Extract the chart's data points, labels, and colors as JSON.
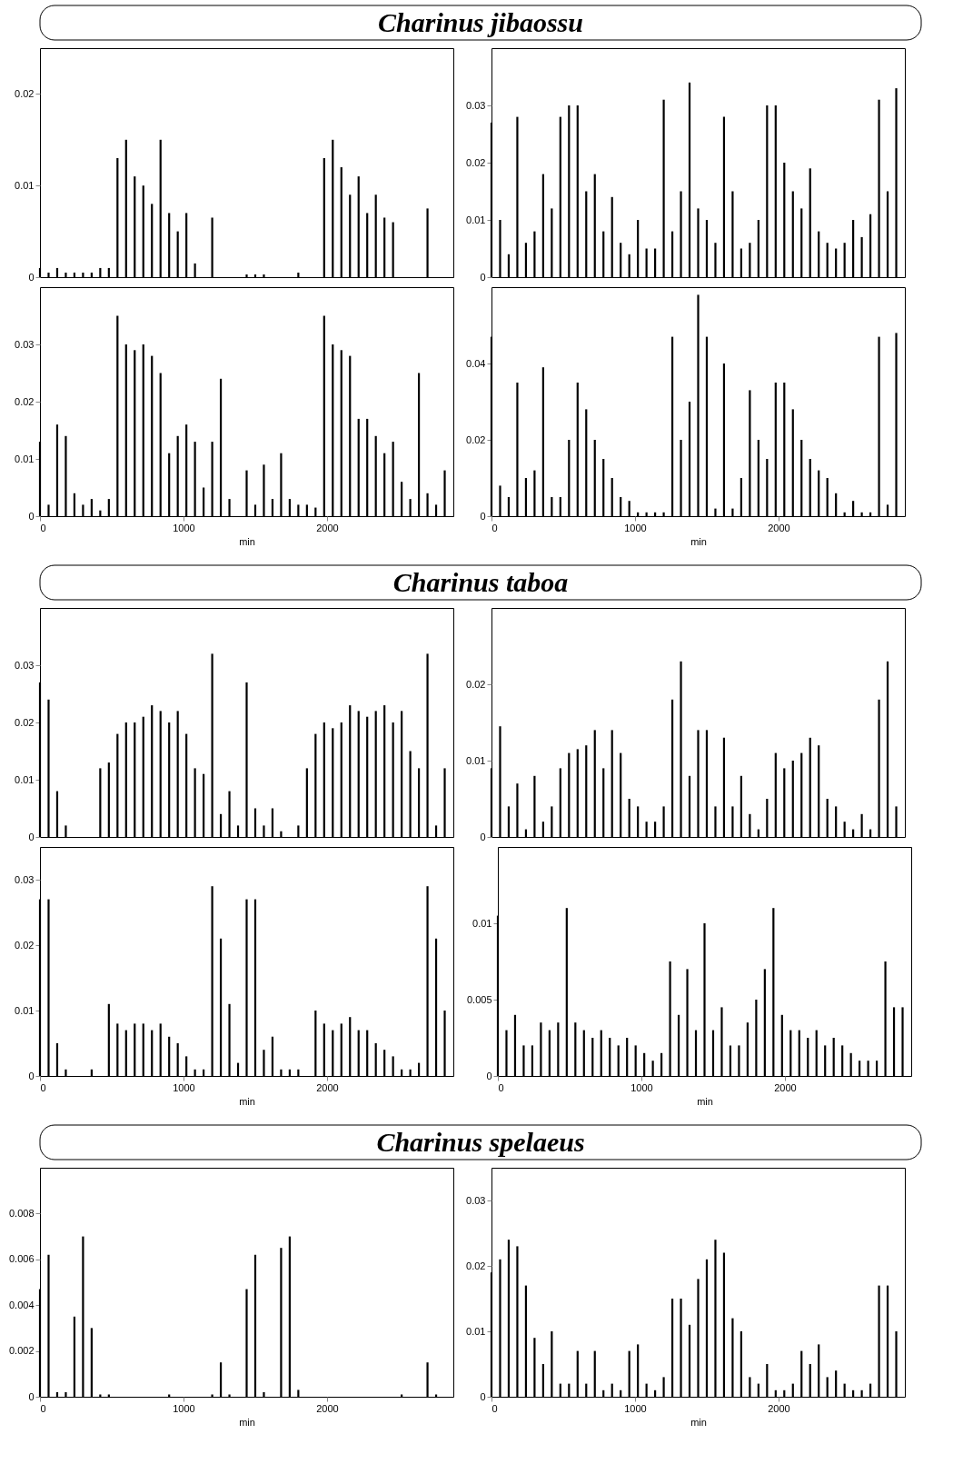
{
  "chart_data": [
    {
      "type": "bar",
      "title": "Charinus jibaossu",
      "color": "#000000",
      "tick_labels": "y",
      "xlim": [
        0,
        2880
      ],
      "xticks": [
        0,
        1000,
        2000
      ],
      "ylim": [
        0,
        0.025
      ],
      "yticks": [
        0,
        0.01,
        0.02
      ],
      "x": [
        0,
        60,
        120,
        180,
        240,
        300,
        360,
        420,
        480,
        540,
        600,
        660,
        720,
        780,
        840,
        900,
        960,
        1020,
        1080,
        1140,
        1200,
        1260,
        1320,
        1380,
        1440,
        1500,
        1560,
        1620,
        1680,
        1740,
        1800,
        1860,
        1920,
        1980,
        2040,
        2100,
        2160,
        2220,
        2280,
        2340,
        2400,
        2460,
        2520,
        2580,
        2640,
        2700,
        2760,
        2820
      ],
      "values": [
        0.001,
        0.0005,
        0.001,
        0.0005,
        0.0005,
        0.0005,
        0.0005,
        0.001,
        0.001,
        0.013,
        0.015,
        0.011,
        0.01,
        0.008,
        0.015,
        0.007,
        0.005,
        0.007,
        0.0015,
        0,
        0.0065,
        0,
        0,
        0,
        0.0003,
        0.0003,
        0.0003,
        0,
        0,
        0,
        0.0005,
        0,
        0,
        0.013,
        0.015,
        0.012,
        0.009,
        0.011,
        0.007,
        0.009,
        0.0065,
        0.006,
        0,
        0,
        0,
        0.0075,
        0,
        0
      ]
    },
    {
      "type": "bar",
      "color": "#000000",
      "tick_labels": "y",
      "xlim": [
        0,
        2880
      ],
      "xticks": [
        0,
        1000,
        2000
      ],
      "ylim": [
        0,
        0.04
      ],
      "yticks": [
        0,
        0.01,
        0.02,
        0.03
      ],
      "x": [
        0,
        60,
        120,
        180,
        240,
        300,
        360,
        420,
        480,
        540,
        600,
        660,
        720,
        780,
        840,
        900,
        960,
        1020,
        1080,
        1140,
        1200,
        1260,
        1320,
        1380,
        1440,
        1500,
        1560,
        1620,
        1680,
        1740,
        1800,
        1860,
        1920,
        1980,
        2040,
        2100,
        2160,
        2220,
        2280,
        2340,
        2400,
        2460,
        2520,
        2580,
        2640,
        2700,
        2760,
        2820
      ],
      "values": [
        0.027,
        0.01,
        0.004,
        0.028,
        0.006,
        0.008,
        0.018,
        0.012,
        0.028,
        0.03,
        0.03,
        0.015,
        0.018,
        0.008,
        0.014,
        0.006,
        0.004,
        0.01,
        0.005,
        0.005,
        0.031,
        0.008,
        0.015,
        0.034,
        0.012,
        0.01,
        0.006,
        0.028,
        0.015,
        0.005,
        0.006,
        0.01,
        0.03,
        0.03,
        0.02,
        0.015,
        0.012,
        0.019,
        0.008,
        0.006,
        0.005,
        0.006,
        0.01,
        0.007,
        0.011,
        0.031,
        0.015,
        0.033
      ]
    },
    {
      "type": "bar",
      "color": "#000000",
      "xlabel": "min",
      "xlim": [
        0,
        2880
      ],
      "xticks": [
        0,
        1000,
        2000
      ],
      "ylim": [
        0,
        0.04
      ],
      "yticks": [
        0,
        0.01,
        0.02,
        0.03
      ],
      "x": [
        0,
        60,
        120,
        180,
        240,
        300,
        360,
        420,
        480,
        540,
        600,
        660,
        720,
        780,
        840,
        900,
        960,
        1020,
        1080,
        1140,
        1200,
        1260,
        1320,
        1380,
        1440,
        1500,
        1560,
        1620,
        1680,
        1740,
        1800,
        1860,
        1920,
        1980,
        2040,
        2100,
        2160,
        2220,
        2280,
        2340,
        2400,
        2460,
        2520,
        2580,
        2640,
        2700,
        2760,
        2820
      ],
      "values": [
        0.013,
        0.002,
        0.016,
        0.014,
        0.004,
        0.002,
        0.003,
        0.001,
        0.003,
        0.035,
        0.03,
        0.029,
        0.03,
        0.028,
        0.025,
        0.011,
        0.014,
        0.016,
        0.013,
        0.005,
        0.013,
        0.024,
        0.003,
        0,
        0.008,
        0.002,
        0.009,
        0.003,
        0.011,
        0.003,
        0.002,
        0.002,
        0.0015,
        0.035,
        0.03,
        0.029,
        0.028,
        0.017,
        0.017,
        0.014,
        0.011,
        0.013,
        0.006,
        0.003,
        0.025,
        0.004,
        0.002,
        0.008
      ]
    },
    {
      "type": "bar",
      "color": "#000000",
      "xlabel": "min",
      "xlim": [
        0,
        2880
      ],
      "xticks": [
        0,
        1000,
        2000
      ],
      "ylim": [
        0,
        0.06
      ],
      "yticks": [
        0,
        0.02,
        0.04
      ],
      "x": [
        0,
        60,
        120,
        180,
        240,
        300,
        360,
        420,
        480,
        540,
        600,
        660,
        720,
        780,
        840,
        900,
        960,
        1020,
        1080,
        1140,
        1200,
        1260,
        1320,
        1380,
        1440,
        1500,
        1560,
        1620,
        1680,
        1740,
        1800,
        1860,
        1920,
        1980,
        2040,
        2100,
        2160,
        2220,
        2280,
        2340,
        2400,
        2460,
        2520,
        2580,
        2640,
        2700,
        2760,
        2820
      ],
      "values": [
        0.047,
        0.008,
        0.005,
        0.035,
        0.01,
        0.012,
        0.039,
        0.005,
        0.005,
        0.02,
        0.035,
        0.028,
        0.02,
        0.015,
        0.01,
        0.005,
        0.004,
        0.001,
        0.001,
        0.001,
        0.001,
        0.047,
        0.02,
        0.03,
        0.058,
        0.047,
        0.002,
        0.04,
        0.002,
        0.01,
        0.033,
        0.02,
        0.015,
        0.035,
        0.035,
        0.028,
        0.02,
        0.015,
        0.012,
        0.01,
        0.006,
        0.001,
        0.004,
        0.001,
        0.001,
        0.047,
        0.003,
        0.048
      ]
    },
    {
      "type": "bar",
      "title": "Charinus taboa",
      "color": "#000000",
      "tick_labels": "y",
      "xlim": [
        0,
        2880
      ],
      "xticks": [
        0,
        1000,
        2000
      ],
      "ylim": [
        0,
        0.04
      ],
      "yticks": [
        0,
        0.01,
        0.02,
        0.03
      ],
      "x": [
        0,
        60,
        120,
        180,
        240,
        300,
        360,
        420,
        480,
        540,
        600,
        660,
        720,
        780,
        840,
        900,
        960,
        1020,
        1080,
        1140,
        1200,
        1260,
        1320,
        1380,
        1440,
        1500,
        1560,
        1620,
        1680,
        1740,
        1800,
        1860,
        1920,
        1980,
        2040,
        2100,
        2160,
        2220,
        2280,
        2340,
        2400,
        2460,
        2520,
        2580,
        2640,
        2700,
        2760,
        2820
      ],
      "values": [
        0.027,
        0.024,
        0.008,
        0.002,
        0,
        0,
        0,
        0.012,
        0.013,
        0.018,
        0.02,
        0.02,
        0.021,
        0.023,
        0.022,
        0.02,
        0.022,
        0.018,
        0.012,
        0.011,
        0.032,
        0.004,
        0.008,
        0.002,
        0.027,
        0.005,
        0.002,
        0.005,
        0.001,
        0,
        0.002,
        0.012,
        0.018,
        0.02,
        0.019,
        0.02,
        0.023,
        0.022,
        0.021,
        0.022,
        0.023,
        0.02,
        0.022,
        0.015,
        0.012,
        0.032,
        0.002,
        0.012
      ]
    },
    {
      "type": "bar",
      "color": "#000000",
      "tick_labels": "y",
      "xlim": [
        0,
        2880
      ],
      "xticks": [
        0,
        1000,
        2000
      ],
      "ylim": [
        0,
        0.03
      ],
      "yticks": [
        0,
        0.01,
        0.02
      ],
      "x": [
        0,
        60,
        120,
        180,
        240,
        300,
        360,
        420,
        480,
        540,
        600,
        660,
        720,
        780,
        840,
        900,
        960,
        1020,
        1080,
        1140,
        1200,
        1260,
        1320,
        1380,
        1440,
        1500,
        1560,
        1620,
        1680,
        1740,
        1800,
        1860,
        1920,
        1980,
        2040,
        2100,
        2160,
        2220,
        2280,
        2340,
        2400,
        2460,
        2520,
        2580,
        2640,
        2700,
        2760,
        2820
      ],
      "values": [
        0.009,
        0.0145,
        0.004,
        0.007,
        0.001,
        0.008,
        0.002,
        0.004,
        0.009,
        0.011,
        0.0115,
        0.012,
        0.014,
        0.009,
        0.014,
        0.011,
        0.005,
        0.004,
        0.002,
        0.002,
        0.004,
        0.018,
        0.023,
        0.008,
        0.014,
        0.014,
        0.004,
        0.013,
        0.004,
        0.008,
        0.003,
        0.001,
        0.005,
        0.011,
        0.009,
        0.01,
        0.011,
        0.013,
        0.012,
        0.005,
        0.004,
        0.002,
        0.001,
        0.003,
        0.001,
        0.018,
        0.023,
        0.004
      ]
    },
    {
      "type": "bar",
      "color": "#000000",
      "xlabel": "min",
      "xlim": [
        0,
        2880
      ],
      "xticks": [
        0,
        1000,
        2000
      ],
      "ylim": [
        0,
        0.035
      ],
      "yticks": [
        0,
        0.01,
        0.02,
        0.03
      ],
      "x": [
        0,
        60,
        120,
        180,
        240,
        300,
        360,
        420,
        480,
        540,
        600,
        660,
        720,
        780,
        840,
        900,
        960,
        1020,
        1080,
        1140,
        1200,
        1260,
        1320,
        1380,
        1440,
        1500,
        1560,
        1620,
        1680,
        1740,
        1800,
        1860,
        1920,
        1980,
        2040,
        2100,
        2160,
        2220,
        2280,
        2340,
        2400,
        2460,
        2520,
        2580,
        2640,
        2700,
        2760,
        2820
      ],
      "values": [
        0.027,
        0.027,
        0.005,
        0.001,
        0,
        0,
        0.001,
        0,
        0.011,
        0.008,
        0.007,
        0.008,
        0.008,
        0.007,
        0.008,
        0.006,
        0.005,
        0.003,
        0.001,
        0.001,
        0.029,
        0.021,
        0.011,
        0.002,
        0.027,
        0.027,
        0.004,
        0.006,
        0.001,
        0.001,
        0.001,
        0,
        0.01,
        0.008,
        0.007,
        0.008,
        0.009,
        0.007,
        0.007,
        0.005,
        0.004,
        0.003,
        0.001,
        0.001,
        0.002,
        0.029,
        0.021,
        0.01
      ]
    },
    {
      "type": "bar",
      "color": "#000000",
      "xlabel": "min",
      "xlim": [
        0,
        2880
      ],
      "xticks": [
        0,
        1000,
        2000
      ],
      "ylim": [
        0,
        0.015
      ],
      "yticks": [
        0,
        0.005,
        0.01
      ],
      "x": [
        0,
        60,
        120,
        180,
        240,
        300,
        360,
        420,
        480,
        540,
        600,
        660,
        720,
        780,
        840,
        900,
        960,
        1020,
        1080,
        1140,
        1200,
        1260,
        1320,
        1380,
        1440,
        1500,
        1560,
        1620,
        1680,
        1740,
        1800,
        1860,
        1920,
        1980,
        2040,
        2100,
        2160,
        2220,
        2280,
        2340,
        2400,
        2460,
        2520,
        2580,
        2640,
        2700,
        2760,
        2820
      ],
      "values": [
        0.0105,
        0.003,
        0.004,
        0.002,
        0.002,
        0.0035,
        0.003,
        0.0035,
        0.011,
        0.0035,
        0.003,
        0.0025,
        0.003,
        0.0025,
        0.002,
        0.0025,
        0.002,
        0.0015,
        0.001,
        0.0015,
        0.0075,
        0.004,
        0.007,
        0.003,
        0.01,
        0.003,
        0.0045,
        0.002,
        0.002,
        0.0035,
        0.005,
        0.007,
        0.011,
        0.004,
        0.003,
        0.003,
        0.0025,
        0.003,
        0.002,
        0.0025,
        0.002,
        0.0015,
        0.001,
        0.001,
        0.001,
        0.0075,
        0.0045,
        0.0045
      ]
    },
    {
      "type": "bar",
      "title": "Charinus spelaeus",
      "color": "#000000",
      "xlabel": "min",
      "xlim": [
        0,
        2880
      ],
      "xticks": [
        0,
        1000,
        2000
      ],
      "ylim": [
        0,
        0.01
      ],
      "yticks": [
        0,
        0.002,
        0.004,
        0.006,
        0.008
      ],
      "x": [
        0,
        60,
        120,
        180,
        240,
        300,
        360,
        420,
        480,
        540,
        600,
        660,
        720,
        780,
        840,
        900,
        960,
        1020,
        1080,
        1140,
        1200,
        1260,
        1320,
        1380,
        1440,
        1500,
        1560,
        1620,
        1680,
        1740,
        1800,
        1860,
        1920,
        1980,
        2040,
        2100,
        2160,
        2220,
        2280,
        2340,
        2400,
        2460,
        2520,
        2580,
        2640,
        2700,
        2760,
        2820
      ],
      "values": [
        0.0047,
        0.0062,
        0.0002,
        0.0002,
        0.0035,
        0.007,
        0.003,
        0.0001,
        0.0001,
        0,
        0,
        0,
        0,
        0,
        0,
        0.0001,
        0,
        0,
        0,
        0,
        0.0001,
        0.0015,
        0.0001,
        0,
        0.0047,
        0.0062,
        0.0002,
        0,
        0.0065,
        0.007,
        0.0003,
        0,
        0,
        0,
        0,
        0,
        0,
        0,
        0,
        0,
        0,
        0,
        0.0001,
        0,
        0,
        0.0015,
        0.0001,
        0
      ]
    },
    {
      "type": "bar",
      "color": "#000000",
      "xlabel": "min",
      "xlim": [
        0,
        2880
      ],
      "xticks": [
        0,
        1000,
        2000
      ],
      "ylim": [
        0,
        0.035
      ],
      "yticks": [
        0,
        0.01,
        0.02,
        0.03
      ],
      "x": [
        0,
        60,
        120,
        180,
        240,
        300,
        360,
        420,
        480,
        540,
        600,
        660,
        720,
        780,
        840,
        900,
        960,
        1020,
        1080,
        1140,
        1200,
        1260,
        1320,
        1380,
        1440,
        1500,
        1560,
        1620,
        1680,
        1740,
        1800,
        1860,
        1920,
        1980,
        2040,
        2100,
        2160,
        2220,
        2280,
        2340,
        2400,
        2460,
        2520,
        2580,
        2640,
        2700,
        2760,
        2820
      ],
      "values": [
        0.019,
        0.021,
        0.024,
        0.023,
        0.017,
        0.009,
        0.005,
        0.01,
        0.002,
        0.002,
        0.007,
        0.002,
        0.007,
        0.001,
        0.002,
        0.001,
        0.007,
        0.008,
        0.002,
        0.001,
        0.003,
        0.015,
        0.015,
        0.011,
        0.018,
        0.021,
        0.024,
        0.022,
        0.012,
        0.01,
        0.003,
        0.002,
        0.005,
        0.001,
        0.001,
        0.002,
        0.007,
        0.005,
        0.008,
        0.003,
        0.004,
        0.002,
        0.001,
        0.001,
        0.002,
        0.017,
        0.017,
        0.01
      ]
    }
  ]
}
